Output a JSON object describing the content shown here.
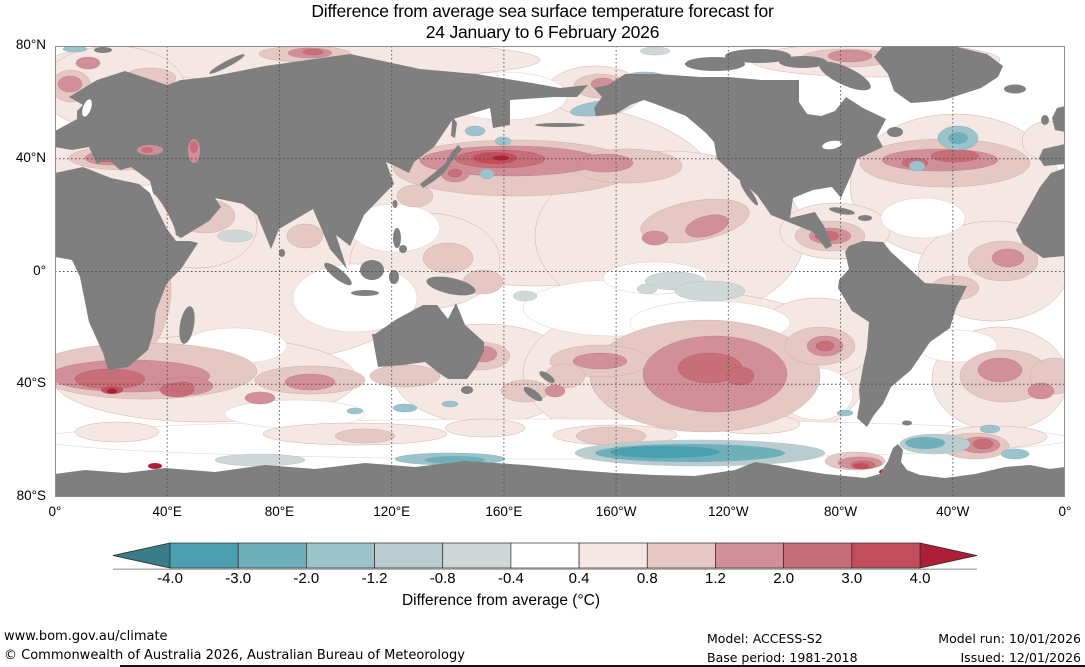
{
  "title": {
    "line1": "Difference from average sea surface temperature forecast for",
    "line2": "24 January to 6 February 2026"
  },
  "map": {
    "land_color": "#7f7f7f",
    "ocean_color": "#ffffff",
    "gridline_color": "#4d4d4d"
  },
  "chart_data": {
    "type": "heatmap",
    "title": "Difference from average sea surface temperature forecast for 24 January to 6 February 2026",
    "projection": "equirectangular, Pacific-centered",
    "lon_range_deg_east": [
      0,
      360
    ],
    "lat_range": [
      -80,
      80
    ],
    "lat_ticks": [
      "80°N",
      "40°N",
      "0°",
      "40°S",
      "80°S"
    ],
    "lon_ticks": [
      "0°",
      "40°E",
      "80°E",
      "120°E",
      "160°E",
      "160°W",
      "120°W",
      "80°W",
      "40°W",
      "0°"
    ],
    "grid": "dotted, every 40 degrees",
    "colorbar": {
      "label": "Difference from average (°C)",
      "tick_labels": [
        "-4.0",
        "-3.0",
        "-2.0",
        "-1.2",
        "-0.8",
        "-0.4",
        "0.4",
        "0.8",
        "1.2",
        "2.0",
        "3.0",
        "4.0"
      ],
      "segment_colors": [
        "#4ba0af",
        "#6fafba",
        "#9cc3cb",
        "#b9cdd1",
        "#d0d8d7",
        "#ffffff",
        "#f5e7e3",
        "#e5c8c3",
        "#d18f99",
        "#c76e79",
        "#c24d5b"
      ],
      "under_arrow_color": "#397c8a",
      "over_arrow_color": "#ae1e37",
      "orientation": "horizontal"
    },
    "features": [
      "Strong warm anomaly band (+1 to +4 °C) across the northwest Pacific east of Japan near 40°N",
      "Warm band along the Gulf Stream / North Atlantic near 40°N and in the Gulf of Mexico",
      "Strong warm pool south of Africa (40-45°S) with small spots exceeding +4 °C",
      "Large warm blob in the south-central Pacific near 40°S, 110°W",
      "Mediterranean, Black and Caspian Seas warmer than average",
      "Cool anomalies (-1 to -3 °C) along the Antarctic coast of the South Pacific sector",
      "Small cool patches in the equatorial central Pacific, northwest Atlantic and Bering Sea",
      "Near-average (white) conditions over much of the equatorial oceans and Southern Ocean at 50-60°S"
    ]
  },
  "footer": {
    "site": "www.bom.gov.au/climate",
    "copyright": "© Commonwealth of Australia 2026, Australian Bureau of Meteorology",
    "model": "Model: ACCESS-S2",
    "base_period": "Base period: 1981-2018",
    "model_run": "Model run: 10/01/2026",
    "issued": "Issued: 12/01/2026"
  }
}
